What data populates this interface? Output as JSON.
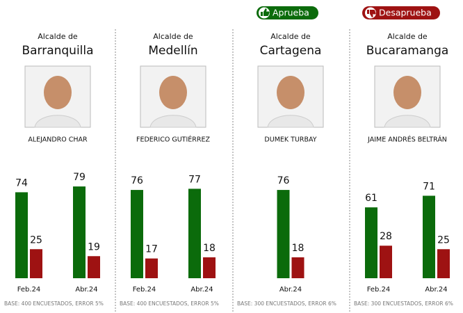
{
  "legend": [
    {
      "name": "Aprueba",
      "color": "#0b6b0b"
    },
    {
      "name": "Desaprueba",
      "color": "#9e1212"
    }
  ],
  "chart_data": [
    {
      "type": "bar",
      "subtitle": "Alcalde de",
      "title": "Barranquilla",
      "person": "ALEJANDRO CHAR",
      "categories": [
        "Feb.24",
        "Abr.24"
      ],
      "series": [
        {
          "values": [
            74,
            79
          ]
        },
        {
          "values": [
            25,
            19
          ]
        }
      ],
      "note": "BASE: 400 ENCUESTADOS, ERROR 5%"
    },
    {
      "type": "bar",
      "subtitle": "Alcalde de",
      "title": "Medellín",
      "person": "FEDERICO GUTIÉRREZ",
      "categories": [
        "Feb.24",
        "Abr.24"
      ],
      "series": [
        {
          "values": [
            76,
            77
          ]
        },
        {
          "values": [
            17,
            18
          ]
        }
      ],
      "note": "BASE: 400 ENCUESTADOS, ERROR 5%"
    },
    {
      "type": "bar",
      "subtitle": "Alcalde de",
      "title": "Cartagena",
      "person": "DUMEK TURBAY",
      "categories": [
        "Abr.24"
      ],
      "series": [
        {
          "values": [
            76
          ]
        },
        {
          "values": [
            18
          ]
        }
      ],
      "note": "BASE: 300 ENCUESTADOS, ERROR 6%"
    },
    {
      "type": "bar",
      "subtitle": "Alcalde de",
      "title": "Bucaramanga",
      "person": "JAIME ANDRÉS BELTRÁN",
      "categories": [
        "Feb.24",
        "Abr.24"
      ],
      "series": [
        {
          "values": [
            61,
            71
          ]
        },
        {
          "values": [
            28,
            25
          ]
        }
      ],
      "note": "BASE: 300 ENCUESTADOS, ERROR 6%"
    }
  ]
}
